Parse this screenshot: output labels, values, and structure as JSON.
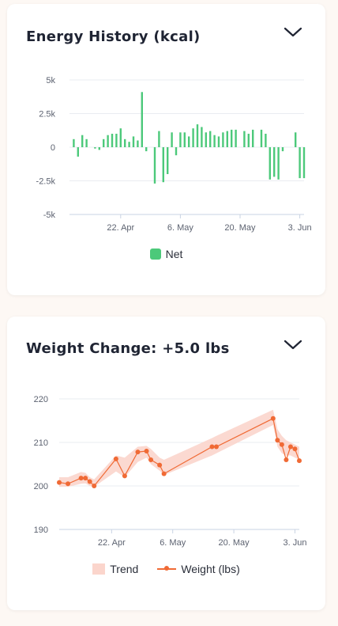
{
  "cards": [
    {
      "title": "Energy History (kcal)",
      "legend": [
        {
          "label": "Net",
          "color": "#4cc97a"
        }
      ]
    },
    {
      "title": "Weight Change: +5.0 lbs",
      "legend": [
        {
          "label": "Trend",
          "color": "#fbd5cc"
        },
        {
          "label": "Weight (lbs)",
          "color": "#f06a35"
        }
      ]
    }
  ],
  "chart_data": [
    {
      "type": "bar",
      "title": "Energy History (kcal)",
      "x_ticks": [
        "22. Apr",
        "6. May",
        "20. May",
        "3. Jun"
      ],
      "x_tick_values": [
        22,
        36,
        50,
        64
      ],
      "xlim": [
        10,
        65
      ],
      "y_ticks": [
        "5k",
        "2.5k",
        "0",
        "-2.5k",
        "-5k"
      ],
      "y_tick_values": [
        5000,
        2500,
        0,
        -2500,
        -5000
      ],
      "ylim": [
        -5000,
        5000
      ],
      "grid": true,
      "legend_position": "bottom-center",
      "series": [
        {
          "name": "Net",
          "color": "#4cc97a",
          "x": [
            11,
            12,
            13,
            14,
            16,
            17,
            18,
            19,
            20,
            21,
            22,
            23,
            24,
            25,
            26,
            27,
            28,
            30,
            31,
            32,
            33,
            34,
            35,
            36,
            37,
            38,
            39,
            40,
            41,
            42,
            43,
            44,
            45,
            46,
            47,
            48,
            49,
            51,
            52,
            53,
            55,
            56,
            57,
            58,
            59,
            60,
            63,
            64,
            65
          ],
          "values": [
            600,
            -700,
            900,
            600,
            -100,
            -200,
            600,
            900,
            1000,
            1000,
            1400,
            600,
            400,
            800,
            500,
            4100,
            -300,
            -2700,
            1200,
            -2600,
            -2000,
            1100,
            -600,
            1100,
            1100,
            800,
            1400,
            1700,
            1500,
            1100,
            1200,
            900,
            800,
            1100,
            1200,
            1300,
            1300,
            1200,
            1000,
            1300,
            1300,
            1000,
            -2400,
            -2200,
            -2400,
            -300,
            1100,
            -2300,
            -2300
          ]
        }
      ]
    },
    {
      "type": "line",
      "title": "Weight Change: +5.0 lbs",
      "x_ticks": [
        "22. Apr",
        "6. May",
        "20. May",
        "3. Jun"
      ],
      "x_tick_values": [
        22,
        36,
        50,
        64
      ],
      "xlim": [
        10,
        65
      ],
      "y_ticks": [
        "220",
        "210",
        "200",
        "190"
      ],
      "y_tick_values": [
        220,
        210,
        200,
        190
      ],
      "ylim": [
        190,
        220
      ],
      "grid": true,
      "legend_position": "bottom-center",
      "series": [
        {
          "name": "Weight (lbs)",
          "color": "#f06a35",
          "x": [
            10,
            12,
            15,
            16,
            17,
            18,
            23,
            25,
            28,
            30,
            31,
            33,
            34,
            45,
            46,
            59,
            60,
            61,
            62,
            63,
            64,
            65
          ],
          "values": [
            200.8,
            200.5,
            201.8,
            201.8,
            201.0,
            200.0,
            206.2,
            202.3,
            207.8,
            208.0,
            206.0,
            204.8,
            202.8,
            209.0,
            209.0,
            215.5,
            210.5,
            209.5,
            206.0,
            209.0,
            208.5,
            205.8
          ]
        },
        {
          "name": "Trend",
          "color": "#fbd5cc",
          "x": [
            10,
            12,
            15,
            16,
            17,
            18,
            23,
            25,
            28,
            30,
            31,
            33,
            34,
            45,
            46,
            59,
            60,
            61,
            62,
            63,
            64,
            65
          ],
          "lower": [
            199.8,
            199.8,
            200.5,
            200.6,
            200.0,
            199.8,
            203.3,
            202.0,
            205.5,
            206.5,
            205.0,
            203.5,
            202.5,
            207.0,
            207.5,
            214.0,
            209.0,
            207.5,
            207.0,
            207.0,
            206.5,
            206.0
          ],
          "upper": [
            202.0,
            202.0,
            203.2,
            203.0,
            202.0,
            201.5,
            207.0,
            206.5,
            209.0,
            209.2,
            208.5,
            206.5,
            206.0,
            211.0,
            211.5,
            217.5,
            213.0,
            211.5,
            210.5,
            210.0,
            209.5,
            209.0
          ]
        }
      ]
    }
  ]
}
